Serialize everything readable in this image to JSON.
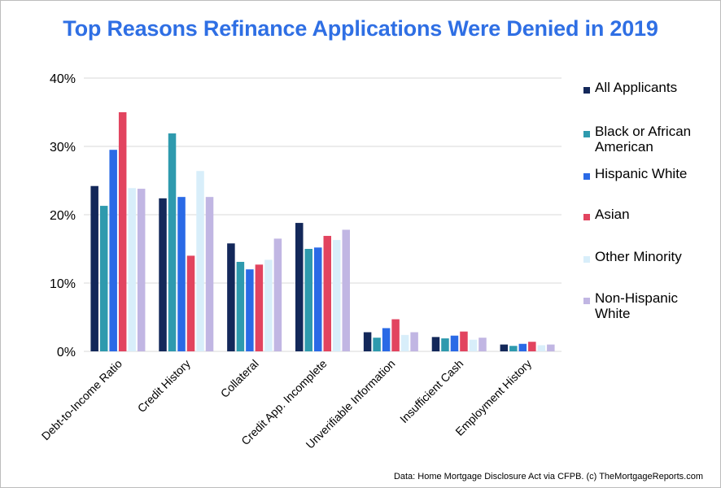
{
  "colors": {
    "title": "#2f6fe4",
    "grid": "#d9d9d9",
    "series": [
      "#13285a",
      "#2e9aae",
      "#2a6ae6",
      "#e2445f",
      "#d8eefa",
      "#c1b6e3"
    ]
  },
  "source_note": "Data: Home Mortgage Disclosure Act via CFPB. (c) TheMortgageReports.com",
  "chart_data": {
    "type": "bar",
    "title": "Top Reasons Refinance Applications Were Denied in 2019",
    "xlabel": "",
    "ylabel": "",
    "ylim": [
      0,
      40
    ],
    "y_ticks": [
      0,
      10,
      20,
      30,
      40
    ],
    "y_tick_labels": [
      "0%",
      "10%",
      "20%",
      "30%",
      "40%"
    ],
    "grid": true,
    "legend_position": "right",
    "categories": [
      "Debt-to-Income Ratio",
      "Credit History",
      "Collateral",
      "Credit App. Incomplete",
      "Unverifiable Information",
      "Insufficient Cash",
      "Employment History"
    ],
    "series": [
      {
        "name": "All Applicants",
        "values": [
          24.2,
          22.4,
          15.8,
          18.8,
          2.8,
          2.1,
          1.0
        ]
      },
      {
        "name": "Black or African American",
        "values": [
          21.3,
          31.9,
          13.1,
          15.0,
          2.0,
          1.9,
          0.8
        ]
      },
      {
        "name": "Hispanic White",
        "values": [
          29.5,
          22.6,
          12.0,
          15.2,
          3.4,
          2.3,
          1.1
        ]
      },
      {
        "name": "Asian",
        "values": [
          35.0,
          14.0,
          12.7,
          16.9,
          4.7,
          2.9,
          1.4
        ]
      },
      {
        "name": "Other Minority",
        "values": [
          23.9,
          26.4,
          13.4,
          16.3,
          2.4,
          1.7,
          0.9
        ]
      },
      {
        "name": "Non-Hispanic White",
        "values": [
          23.8,
          22.6,
          16.5,
          17.8,
          2.8,
          2.0,
          1.0
        ]
      }
    ]
  }
}
